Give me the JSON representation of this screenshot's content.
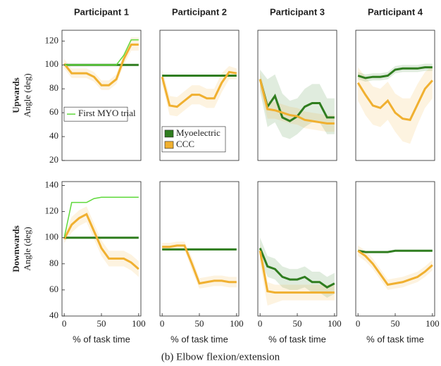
{
  "chart_data": [
    {
      "type": "line",
      "title": "Participant 1",
      "row_label": "Upwards",
      "ylabel": "Angle (deg)",
      "x": [
        0,
        10,
        20,
        30,
        40,
        50,
        60,
        70,
        80,
        90,
        100
      ],
      "xlim": [
        -3,
        103
      ],
      "ylim": [
        20,
        129
      ],
      "yticks": [
        20,
        40,
        60,
        80,
        100,
        120
      ],
      "legend": "center left",
      "series": [
        {
          "color": "#2f7d1f",
          "values": [
            100,
            100,
            100,
            100,
            100,
            100,
            100,
            100,
            100,
            100,
            100
          ]
        },
        {
          "color": "#f0b030",
          "values": [
            101,
            93,
            93,
            93,
            90,
            83,
            83,
            88,
            105,
            117,
            117
          ],
          "lower": [
            97,
            89,
            89,
            89,
            86,
            79,
            79,
            84,
            100,
            112,
            112
          ],
          "upper": [
            105,
            97,
            97,
            97,
            94,
            87,
            87,
            92,
            110,
            123,
            123
          ]
        },
        {
          "name": "First MYO trial",
          "color": "#5fd93b",
          "values": [
            100,
            100,
            100,
            100,
            100,
            100,
            100,
            100,
            108,
            121,
            121
          ]
        }
      ]
    },
    {
      "type": "line",
      "title": "Participant 2",
      "x": [
        0,
        10,
        20,
        30,
        40,
        50,
        60,
        70,
        80,
        90,
        100
      ],
      "xlim": [
        -3,
        103
      ],
      "ylim": [
        20,
        129
      ],
      "legend": "lower left",
      "series": [
        {
          "name": "Myoelectric",
          "color": "#2f7d1f",
          "values": [
            91,
            91,
            91,
            91,
            91,
            91,
            91,
            91,
            91,
            91,
            91
          ]
        },
        {
          "name": "CCC",
          "color": "#f0b030",
          "values": [
            90,
            66,
            65,
            70,
            75,
            75,
            72,
            72,
            85,
            94,
            93
          ],
          "lower": [
            84,
            58,
            57,
            62,
            67,
            67,
            64,
            64,
            77,
            88,
            88
          ],
          "upper": [
            96,
            74,
            73,
            78,
            83,
            83,
            80,
            80,
            93,
            99,
            97
          ]
        }
      ]
    },
    {
      "type": "line",
      "title": "Participant 3",
      "x": [
        0,
        10,
        20,
        30,
        40,
        50,
        60,
        70,
        80,
        90,
        100
      ],
      "xlim": [
        -3,
        103
      ],
      "ylim": [
        20,
        129
      ],
      "series": [
        {
          "color": "#2f7d1f",
          "values": [
            88,
            65,
            74,
            56,
            53,
            57,
            65,
            68,
            68,
            56,
            56
          ],
          "lower": [
            78,
            48,
            52,
            40,
            38,
            42,
            48,
            52,
            52,
            42,
            42
          ],
          "upper": [
            96,
            88,
            92,
            76,
            70,
            72,
            80,
            84,
            84,
            72,
            72
          ]
        },
        {
          "color": "#f0b030",
          "values": [
            88,
            63,
            62,
            60,
            58,
            57,
            54,
            53,
            52,
            51,
            51
          ],
          "lower": [
            80,
            55,
            55,
            53,
            51,
            50,
            47,
            46,
            45,
            44,
            44
          ],
          "upper": [
            94,
            70,
            69,
            67,
            65,
            64,
            61,
            60,
            59,
            58,
            58
          ]
        }
      ]
    },
    {
      "type": "line",
      "title": "Participant 4",
      "x": [
        0,
        10,
        20,
        30,
        40,
        50,
        60,
        70,
        80,
        90,
        100
      ],
      "xlim": [
        -3,
        103
      ],
      "ylim": [
        20,
        129
      ],
      "series": [
        {
          "color": "#2f7d1f",
          "values": [
            91,
            89,
            90,
            90,
            91,
            96,
            97,
            97,
            97,
            98,
            98
          ],
          "lower": [
            88,
            86,
            87,
            87,
            88,
            93,
            94,
            94,
            94,
            95,
            95
          ],
          "upper": [
            94,
            92,
            93,
            93,
            94,
            99,
            100,
            100,
            100,
            101,
            101
          ]
        },
        {
          "color": "#f0b030",
          "values": [
            85,
            75,
            66,
            64,
            70,
            60,
            55,
            54,
            67,
            80,
            87
          ],
          "lower": [
            70,
            58,
            50,
            48,
            54,
            44,
            36,
            34,
            50,
            64,
            72
          ],
          "upper": [
            98,
            90,
            82,
            80,
            86,
            76,
            72,
            72,
            84,
            94,
            99
          ]
        }
      ]
    },
    {
      "type": "line",
      "row_label": "Downwards",
      "ylabel": "Angle (deg)",
      "xlabel": "% of task time",
      "x": [
        0,
        10,
        20,
        30,
        40,
        50,
        60,
        70,
        80,
        90,
        100
      ],
      "xlim": [
        -3,
        103
      ],
      "ylim": [
        40,
        143
      ],
      "yticks": [
        40,
        60,
        80,
        100,
        120,
        140
      ],
      "xticks": [
        0,
        50,
        100
      ],
      "series": [
        {
          "color": "#2f7d1f",
          "values": [
            100,
            100,
            100,
            100,
            100,
            100,
            100,
            100,
            100,
            100,
            100
          ]
        },
        {
          "color": "#f0b030",
          "values": [
            99,
            110,
            115,
            118,
            105,
            92,
            84,
            84,
            84,
            81,
            76
          ],
          "lower": [
            96,
            104,
            109,
            112,
            99,
            86,
            78,
            78,
            78,
            75,
            70
          ],
          "upper": [
            102,
            116,
            121,
            124,
            111,
            98,
            90,
            90,
            90,
            87,
            82
          ]
        },
        {
          "color": "#5fd93b",
          "values": [
            100,
            127,
            127,
            127,
            130,
            131,
            131,
            131,
            131,
            131,
            131
          ]
        }
      ]
    },
    {
      "type": "line",
      "xlabel": "% of task time",
      "x": [
        0,
        10,
        20,
        30,
        40,
        50,
        60,
        70,
        80,
        90,
        100
      ],
      "xlim": [
        -3,
        103
      ],
      "ylim": [
        40,
        143
      ],
      "xticks": [
        0,
        50,
        100
      ],
      "series": [
        {
          "color": "#2f7d1f",
          "values": [
            91,
            91,
            91,
            91,
            91,
            91,
            91,
            91,
            91,
            91,
            91
          ]
        },
        {
          "color": "#f0b030",
          "values": [
            93,
            93,
            94,
            94,
            80,
            65,
            66,
            67,
            67,
            66,
            66
          ],
          "lower": [
            90,
            90,
            91,
            91,
            75,
            61,
            62,
            63,
            63,
            62,
            62
          ],
          "upper": [
            96,
            96,
            97,
            97,
            85,
            69,
            70,
            71,
            71,
            70,
            70
          ]
        }
      ]
    },
    {
      "type": "line",
      "xlabel": "% of task time",
      "x": [
        0,
        10,
        20,
        30,
        40,
        50,
        60,
        70,
        80,
        90,
        100
      ],
      "xlim": [
        -3,
        103
      ],
      "ylim": [
        40,
        143
      ],
      "xticks": [
        0,
        50,
        100
      ],
      "series": [
        {
          "color": "#2f7d1f",
          "values": [
            92,
            78,
            76,
            70,
            68,
            68,
            70,
            66,
            66,
            62,
            65
          ],
          "lower": [
            84,
            70,
            68,
            62,
            60,
            60,
            62,
            58,
            58,
            54,
            57
          ],
          "upper": [
            100,
            86,
            84,
            78,
            76,
            76,
            78,
            74,
            74,
            70,
            73
          ]
        },
        {
          "color": "#f0b030",
          "values": [
            90,
            59,
            58,
            58,
            58,
            58,
            58,
            58,
            58,
            58,
            58
          ],
          "lower": [
            80,
            48,
            50,
            52,
            52,
            52,
            52,
            52,
            52,
            52,
            52
          ],
          "upper": [
            96,
            66,
            64,
            64,
            64,
            64,
            64,
            64,
            64,
            64,
            64
          ]
        }
      ]
    },
    {
      "type": "line",
      "xlabel": "% of task time",
      "x": [
        0,
        10,
        20,
        30,
        40,
        50,
        60,
        70,
        80,
        90,
        100
      ],
      "xlim": [
        -3,
        103
      ],
      "ylim": [
        40,
        143
      ],
      "xticks": [
        0,
        50,
        100
      ],
      "series": [
        {
          "color": "#2f7d1f",
          "values": [
            90,
            89,
            89,
            89,
            89,
            90,
            90,
            90,
            90,
            90,
            90
          ]
        },
        {
          "color": "#f0b030",
          "values": [
            90,
            86,
            80,
            72,
            64,
            65,
            66,
            68,
            70,
            74,
            79
          ],
          "lower": [
            86,
            82,
            76,
            68,
            60,
            61,
            62,
            64,
            66,
            70,
            75
          ],
          "upper": [
            94,
            90,
            84,
            76,
            68,
            69,
            70,
            72,
            74,
            78,
            83
          ]
        }
      ]
    }
  ],
  "caption": "(b) Elbow flexion/extension"
}
